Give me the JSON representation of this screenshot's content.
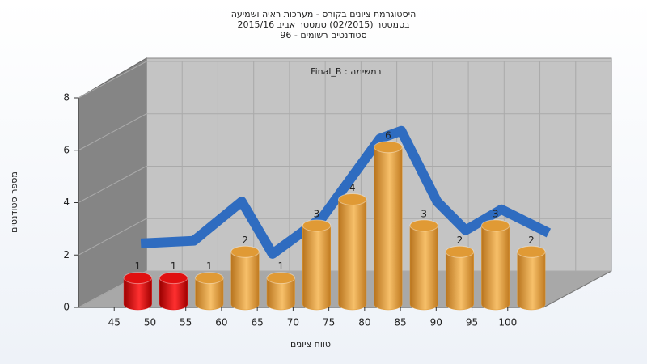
{
  "chart_data": {
    "type": "histogram",
    "title": [
      "היסטוגרמת ציונים בקורס - מערכות ראיה ושמיעה",
      "בסמסטר  (02/2015)  סמסטר אביב 2015/16",
      "סטודנטים רשומים - 96"
    ],
    "annotation": "במשימה : Final_B",
    "x_label": "טווח ציונים",
    "y_label": "מספר סטודנטים",
    "bins": [
      45,
      50,
      55,
      60,
      65,
      70,
      75,
      80,
      85,
      90,
      95,
      100,
      105
    ],
    "values": [
      1,
      1,
      1,
      2,
      1,
      3,
      4,
      6,
      3,
      2,
      3,
      2
    ],
    "colors": [
      "#e01010",
      "#e01010",
      "#e09a35",
      "#e09a35",
      "#e09a35",
      "#e09a35",
      "#e09a35",
      "#e09a35",
      "#e09a35",
      "#e09a35",
      "#e09a35",
      "#e09a35"
    ],
    "curve": {
      "color": "#2f6cc0",
      "x": [
        41.6,
        49,
        55.7,
        60,
        67,
        75,
        78,
        83,
        87,
        92,
        98.6
      ],
      "values": [
        1.4,
        1.5,
        3,
        1,
        2.4,
        5.4,
        5.7,
        3,
        1.9,
        2.7,
        1.8
      ]
    },
    "xlim": [
      40,
      105
    ],
    "xticks": [
      45,
      50,
      55,
      60,
      65,
      70,
      75,
      80,
      85,
      90,
      95,
      100
    ],
    "ylim": [
      0,
      8
    ],
    "yticks": [
      0,
      2,
      4,
      6,
      8
    ],
    "grid": true
  }
}
